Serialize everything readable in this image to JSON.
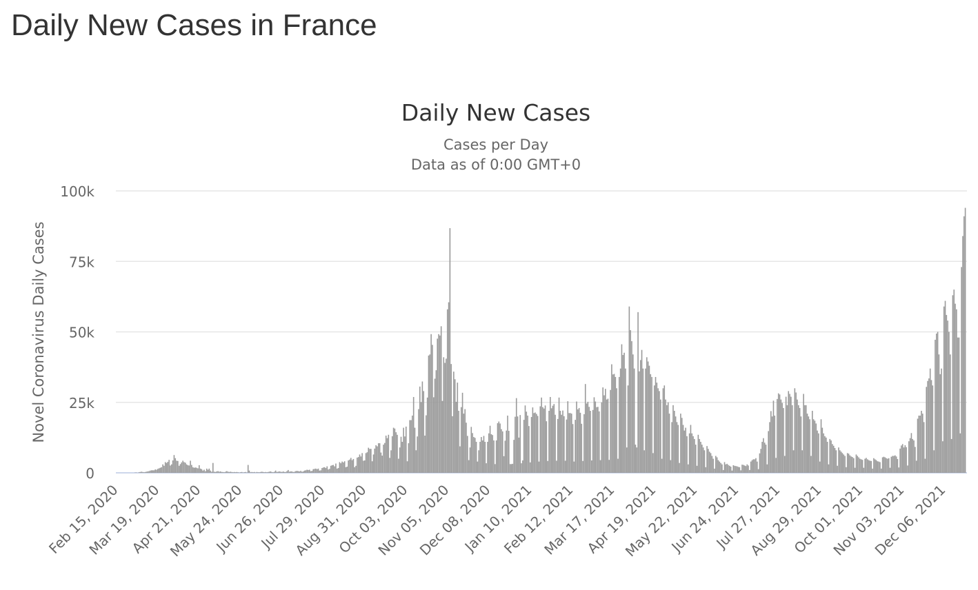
{
  "page": {
    "title": "Daily New Cases in France"
  },
  "chart_data": {
    "type": "bar",
    "title": "Daily New Cases",
    "subtitle": "Cases per Day",
    "subtitle2": "Data as of 0:00 GMT+0",
    "ylabel": "Novel Coronavirus Daily Cases",
    "xlabel": "",
    "ylim": [
      0,
      100000
    ],
    "y_ticks": [
      0,
      25000,
      50000,
      75000,
      100000
    ],
    "y_tick_labels": [
      "0",
      "25k",
      "50k",
      "75k",
      "100k"
    ],
    "x_start_date": "Feb 15, 2020",
    "x_tick_interval_days": 33,
    "x_tick_labels": [
      "Feb 15, 2020",
      "Mar 19, 2020",
      "Apr 21, 2020",
      "May 24, 2020",
      "Jun 26, 2020",
      "Jul 29, 2020",
      "Aug 31, 2020",
      "Oct 03, 2020",
      "Nov 05, 2020",
      "Dec 08, 2020",
      "Jan 10, 2021",
      "Feb 12, 2021",
      "Mar 17, 2021",
      "Apr 19, 2021",
      "May 22, 2021",
      "Jun 24, 2021",
      "Jul 27, 2021",
      "Aug 29, 2021",
      "Oct 01, 2021",
      "Nov 03, 2021",
      "Dec 06, 2021"
    ],
    "grid": true,
    "legend": "none",
    "colors": {
      "bar": "#999999",
      "grid": "#e6e6e6",
      "baseline": "#ccd6eb"
    },
    "values": [
      0,
      0,
      0,
      0,
      0,
      0,
      0,
      0,
      0,
      0,
      0,
      0,
      0,
      0,
      0,
      100,
      100,
      0,
      200,
      300,
      400,
      300,
      200,
      300,
      400,
      500,
      600,
      800,
      900,
      900,
      900,
      1200,
      1100,
      1400,
      1600,
      1800,
      2000,
      3000,
      2500,
      3800,
      3500,
      3900,
      4600,
      2600,
      3000,
      4400,
      6300,
      5200,
      4300,
      4200,
      2500,
      3100,
      3700,
      4300,
      3800,
      3600,
      3000,
      2700,
      2600,
      4300,
      2800,
      2000,
      1800,
      1900,
      1800,
      1600,
      2700,
      1500,
      1300,
      800,
      1100,
      600,
      1500,
      1100,
      1500,
      800,
      400,
      3500,
      400,
      300,
      500,
      600,
      400,
      500,
      300,
      300,
      200,
      400,
      600,
      400,
      300,
      400,
      300,
      200,
      300,
      200,
      300,
      200,
      100,
      200,
      300,
      100,
      200,
      300,
      100,
      2800,
      800,
      200,
      300,
      200,
      300,
      100,
      300,
      200,
      200,
      300,
      400,
      300,
      200,
      300,
      200,
      300,
      400,
      500,
      300,
      200,
      400,
      800,
      300,
      400,
      500,
      400,
      300,
      500,
      300,
      300,
      600,
      1000,
      400,
      500,
      500,
      300,
      400,
      600,
      700,
      600,
      500,
      700,
      400,
      500,
      800,
      900,
      1100,
      1000,
      1100,
      600,
      700,
      1300,
      1400,
      1500,
      1300,
      1500,
      800,
      900,
      1700,
      1900,
      2000,
      1700,
      2300,
      1200,
      1400,
      2500,
      2700,
      2800,
      2300,
      3300,
      1500,
      1700,
      3800,
      3400,
      4000,
      3700,
      4100,
      2000,
      2200,
      4400,
      4700,
      5300,
      4500,
      4900,
      2000,
      2500,
      5400,
      5600,
      6500,
      5800,
      7000,
      4300,
      4400,
      7000,
      7300,
      8900,
      8500,
      8500,
      4100,
      6500,
      8600,
      9800,
      9400,
      10500,
      10500,
      7200,
      6100,
      10000,
      10600,
      13200,
      12300,
      13500,
      5300,
      8000,
      13000,
      16000,
      15700,
      14400,
      13500,
      5000,
      9000,
      12800,
      11000,
      16000,
      12900,
      16400,
      4100,
      10500,
      18700,
      18700,
      20300,
      26900,
      16000,
      8000,
      12900,
      22600,
      30600,
      25100,
      32400,
      29000,
      13200,
      20400,
      26700,
      41600,
      42000,
      49200,
      45400,
      26800,
      33400,
      36400,
      47600,
      49200,
      48700,
      52000,
      25500,
      41000,
      39000,
      40500,
      58000,
      60500,
      86800,
      38600,
      20100,
      35900,
      33200,
      25200,
      32000,
      22000,
      9400,
      23300,
      28400,
      21000,
      22600,
      17800,
      13100,
      4500,
      9000,
      16300,
      14100,
      12700,
      12400,
      11000,
      4000,
      8000,
      11000,
      12700,
      11500,
      13100,
      11000,
      3400,
      11000,
      14000,
      16700,
      13700,
      13400,
      11500,
      3100,
      11500,
      17600,
      18200,
      17500,
      15500,
      14700,
      5900,
      11400,
      15000,
      20300,
      14900,
      3100,
      3100,
      3200,
      11700,
      19900,
      26500,
      20000,
      12500,
      20500,
      3400,
      4400,
      18800,
      23900,
      21700,
      20300,
      16600,
      3700,
      19800,
      23200,
      21200,
      21400,
      20900,
      20200,
      4000,
      23600,
      26700,
      23300,
      22800,
      23900,
      18300,
      4200,
      22000,
      26900,
      22900,
      23800,
      24400,
      20600,
      4300,
      19100,
      26700,
      22000,
      20600,
      22100,
      20100,
      4300,
      18900,
      25400,
      21200,
      21200,
      21000,
      17300,
      4000,
      18800,
      25300,
      22500,
      23000,
      21300,
      17400,
      4200,
      20800,
      31500,
      24600,
      25200,
      23400,
      22000,
      4400,
      22300,
      26800,
      25300,
      23300,
      23400,
      21800,
      4500,
      25000,
      30300,
      27500,
      29800,
      26000,
      26300,
      4600,
      29400,
      38500,
      34900,
      35100,
      34000,
      30000,
      5000,
      34000,
      37000,
      45600,
      41800,
      42600,
      37000,
      9000,
      31000,
      59000,
      50600,
      46700,
      42000,
      37000,
      10000,
      9000,
      57000,
      36000,
      40000,
      43600,
      37000,
      8000,
      37000,
      41000,
      39500,
      38000,
      35000,
      34000,
      7000,
      31000,
      34000,
      32000,
      30000,
      29000,
      26000,
      5000,
      30000,
      31000,
      26000,
      24000,
      25000,
      21000,
      4500,
      18000,
      24000,
      22000,
      20000,
      18000,
      17000,
      3500,
      21000,
      19500,
      17000,
      15000,
      16000,
      13000,
      3000,
      14000,
      17000,
      14000,
      13000,
      12000,
      10000,
      2500,
      13500,
      12000,
      11000,
      10000,
      9000,
      8000,
      2000,
      9500,
      8500,
      7500,
      7000,
      6000,
      5000,
      1500,
      6000,
      5500,
      4500,
      4000,
      3500,
      3000,
      1000,
      3800,
      3000,
      3200,
      2800,
      2500,
      2200,
      800,
      2700,
      2500,
      2400,
      2300,
      2100,
      2000,
      900,
      2900,
      2800,
      2600,
      2400,
      3000,
      2600,
      1000,
      4000,
      4500,
      4800,
      4800,
      5200,
      4000,
      1300,
      6900,
      8500,
      11000,
      12300,
      10700,
      10000,
      3000,
      14800,
      18000,
      21900,
      20000,
      25600,
      20300,
      5300,
      26200,
      28200,
      27800,
      26000,
      24800,
      23000,
      6000,
      27000,
      24000,
      29000,
      28000,
      27000,
      24000,
      8000,
      30000,
      28500,
      26000,
      24000,
      23000,
      20000,
      8000,
      28000,
      24000,
      24000,
      21000,
      20000,
      19000,
      6000,
      22000,
      19000,
      18500,
      17500,
      15000,
      14000,
      4000,
      19000,
      16000,
      14000,
      13000,
      12500,
      11000,
      3000,
      12000,
      11500,
      10200,
      9600,
      8800,
      8000,
      2500,
      9000,
      8000,
      7500,
      7000,
      6500,
      6000,
      2000,
      7000,
      6800,
      6200,
      5800,
      5600,
      5200,
      1800,
      6500,
      6000,
      5500,
      5000,
      4800,
      4600,
      1800,
      5000,
      5300,
      4800,
      4500,
      4300,
      4200,
      1500,
      5200,
      4800,
      4500,
      4100,
      4000,
      3800,
      1500,
      5500,
      5700,
      5500,
      5200,
      5000,
      5200,
      1800,
      5700,
      6000,
      6000,
      6200,
      5800,
      4900,
      1900,
      8600,
      9700,
      10200,
      9000,
      9800,
      9100,
      2600,
      11200,
      12300,
      14100,
      12000,
      11500,
      9200,
      4300,
      19200,
      20300,
      20300,
      22000,
      21000,
      18000,
      5000,
      30500,
      32600,
      33500,
      37000,
      32900,
      31000,
      8000,
      47200,
      49400,
      50000,
      42000,
      35000,
      37000,
      11200,
      59000,
      61000,
      56000,
      54000,
      50000,
      42000,
      12000,
      63000,
      65000,
      60000,
      58000,
      48000,
      48000,
      14000,
      73000,
      84000,
      91000,
      94000
    ]
  }
}
